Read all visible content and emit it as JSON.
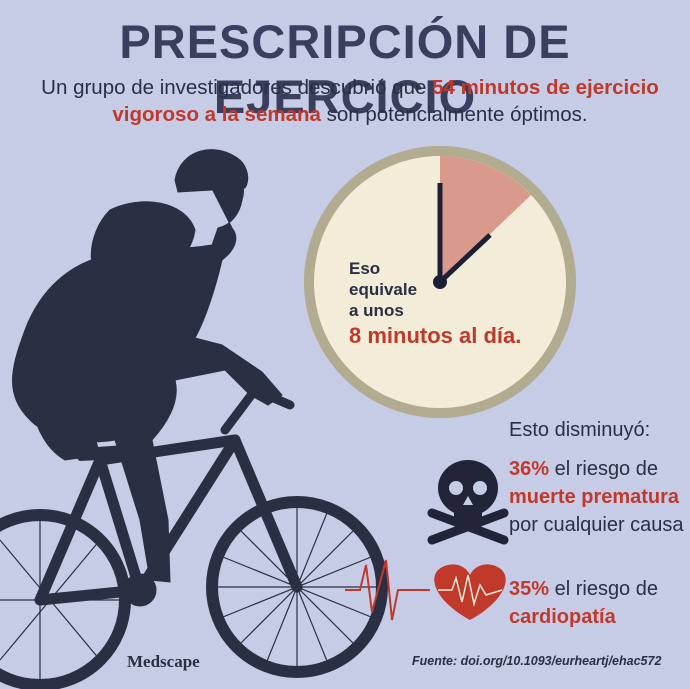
{
  "title": "PRESCRIPCIÓN DE EJERCICIO",
  "intro": {
    "part1": "Un grupo de investigadores descubrió que ",
    "highlight1": "54 minutos",
    "highlight2": "de ejercicio vigoroso a la semana",
    "part2": " son potencialmente óptimos."
  },
  "clock": {
    "line1": "Eso",
    "line2": "equivale",
    "line3": "a unos",
    "big": "8 minutos al día.",
    "minutes_per_day": 8
  },
  "stats": {
    "heading": "Esto disminuyó:",
    "death": {
      "pct": "36%",
      "text1": " el riesgo de ",
      "highlight": "muerte prematura",
      "text2": " por cualquier causa"
    },
    "heart": {
      "pct": "35%",
      "text1": " el riesgo de ",
      "highlight": "cardiopatía"
    }
  },
  "logo": "Medscape",
  "source": "Fuente: doi.org/10.1093/eurheartj/ehac572",
  "colors": {
    "background": "#c6cce6",
    "silhouette": "#2b2f44",
    "accent_red": "#c0392b",
    "clock_face": "#f2ecd8",
    "clock_rim": "#b1ab8f",
    "clock_wedge": "#d99a8c"
  }
}
